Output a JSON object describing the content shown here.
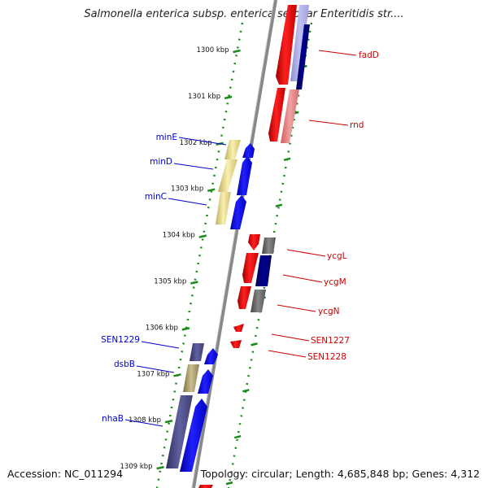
{
  "title": "Salmonella enterica subsp. enterica serovar Enteritidis str....",
  "footer": {
    "accession": "Accession: NC_011294",
    "topology": "Topology: circular; Length: 4,685,848 bp; Genes: 4,312"
  },
  "ticks": [
    "1300 kbp",
    "1301 kbp",
    "1302 kbp",
    "1303 kbp",
    "1304 kbp",
    "1305 kbp",
    "1306 kbp",
    "1307 kbp",
    "1308 kbp",
    "1309 kbp"
  ],
  "genes_right": [
    "fadD",
    "rnd",
    "ycgL",
    "ycgM",
    "ycgN",
    "SEN1227",
    "SEN1228"
  ],
  "genes_left": [
    "minE",
    "minD",
    "minC",
    "SEN1229",
    "dsbB",
    "nhaB"
  ],
  "colors": {
    "forward_label": "#0000cc",
    "reverse_label": "#cc0000",
    "forward_gene": "#0000ff",
    "reverse_gene": "#ff0000",
    "backbone": "#888888",
    "dotted_track": "#1a8a1a"
  }
}
